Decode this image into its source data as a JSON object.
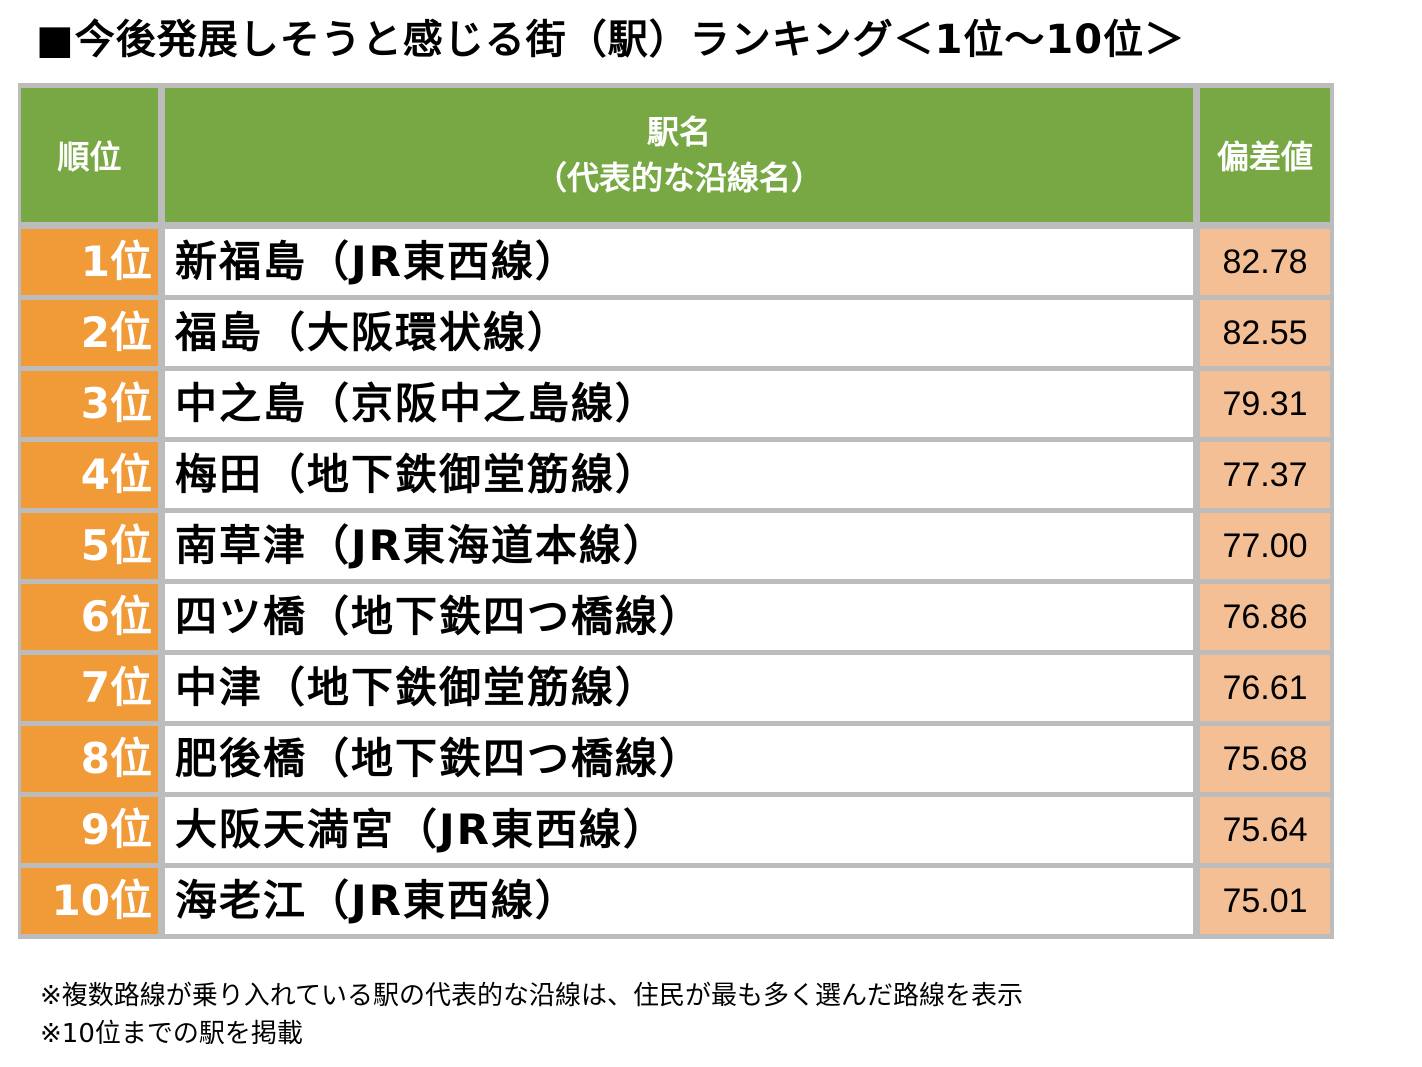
{
  "title": "■今後発展しそうと感じる街（駅）ランキング＜1位～10位＞",
  "header": {
    "rank": "順位",
    "name_line1": "駅名",
    "name_line2": "（代表的な沿線名）",
    "score": "偏差値"
  },
  "rows": [
    {
      "rank": "1位",
      "name": "新福島（JR東西線）",
      "score": "82.78"
    },
    {
      "rank": "2位",
      "name": "福島（大阪環状線）",
      "score": "82.55"
    },
    {
      "rank": "3位",
      "name": "中之島（京阪中之島線）",
      "score": "79.31"
    },
    {
      "rank": "4位",
      "name": "梅田（地下鉄御堂筋線）",
      "score": "77.37"
    },
    {
      "rank": "5位",
      "name": "南草津（JR東海道本線）",
      "score": "77.00"
    },
    {
      "rank": "6位",
      "name": "四ツ橋（地下鉄四つ橋線）",
      "score": "76.86"
    },
    {
      "rank": "7位",
      "name": "中津（地下鉄御堂筋線）",
      "score": "76.61"
    },
    {
      "rank": "8位",
      "name": "肥後橋（地下鉄四つ橋線）",
      "score": "75.68"
    },
    {
      "rank": "9位",
      "name": "大阪天満宮（JR東西線）",
      "score": "75.64"
    },
    {
      "rank": "10位",
      "name": "海老江（JR東西線）",
      "score": "75.01"
    }
  ],
  "notes": [
    "※複数路線が乗り入れている駅の代表的な沿線は、住民が最も多く選んだ路線を表示",
    "※10位までの駅を掲載"
  ],
  "colors": {
    "header_bg": "#77a843",
    "rank_bg": "#f09a38",
    "score_bg": "#f4bf94",
    "border": "#bcbcbc"
  }
}
